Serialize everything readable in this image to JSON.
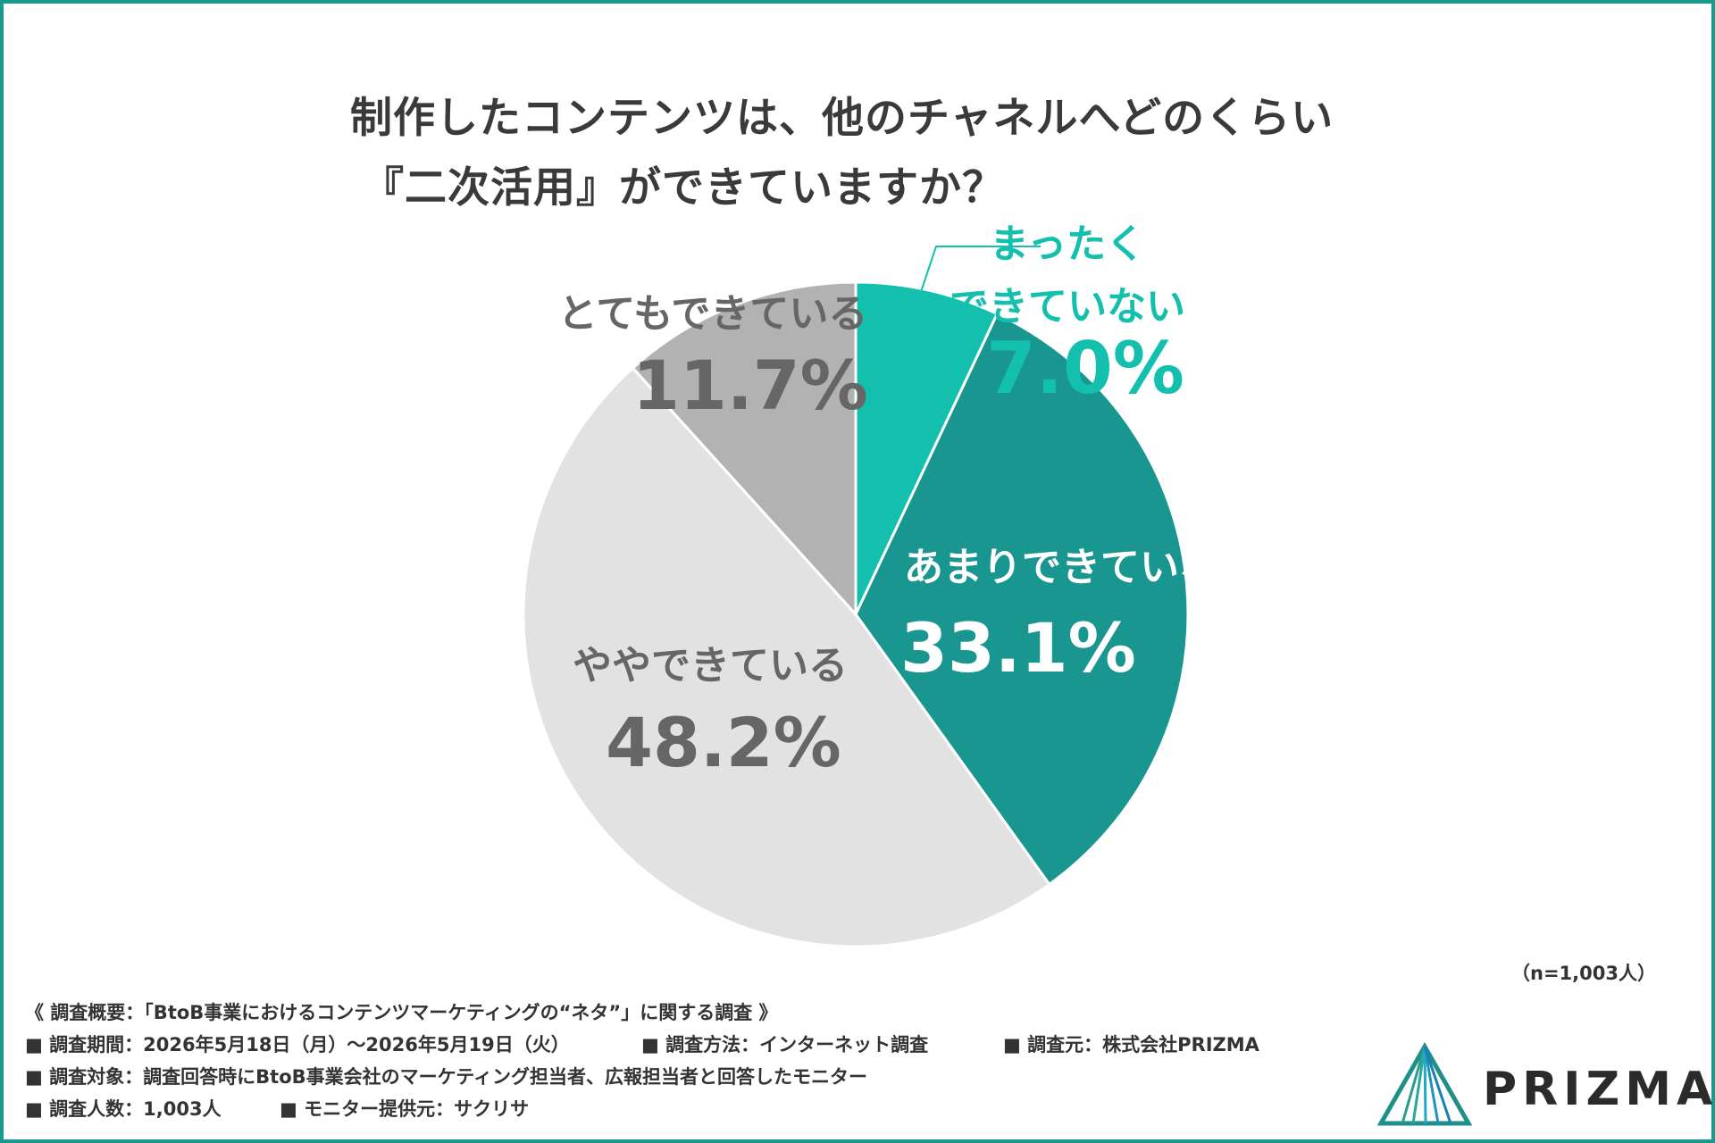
{
  "chart_data": {
    "type": "pie",
    "title_lines": [
      "制作したコンテンツは、他のチャネルへどのくらい",
      "『二次活用』ができていますか？"
    ],
    "slices": [
      {
        "label_lines": [
          "まったく",
          "できていない"
        ],
        "value": 7.0,
        "value_label": "7.0%",
        "color": "#13c0ad"
      },
      {
        "label_lines": [
          "あまりできていない"
        ],
        "value": 33.1,
        "value_label": "33.1%",
        "color": "#1a9690"
      },
      {
        "label_lines": [
          "ややできている"
        ],
        "value": 48.2,
        "value_label": "48.2%",
        "color": "#e2e2e2"
      },
      {
        "label_lines": [
          "とてもできている"
        ],
        "value": 11.7,
        "value_label": "11.7%",
        "color": "#b2b2b2"
      }
    ],
    "start": "12 o'clock, clockwise",
    "legend": "none"
  },
  "sample_note": "（n=1,003人）",
  "survey": {
    "heading": "《 調査概要：「BtoB事業におけるコンテンツマーケティングの“ネタ”」に関する調査 》",
    "period": "■ 調査期間：2026年5月18日（月）〜2026年5月19日（火）",
    "method": "■ 調査方法：インターネット調査",
    "source": "■ 調査元：株式会社PRIZMA",
    "target": "■ 調査対象：調査回答時にBtoB事業会社のマーケティング担当者、広報担当者と回答したモニター",
    "count": "■ 調査人数：1,003人",
    "provider": "■ モニター提供元：サクリサ"
  },
  "logo": {
    "text": "PRIZMA"
  }
}
